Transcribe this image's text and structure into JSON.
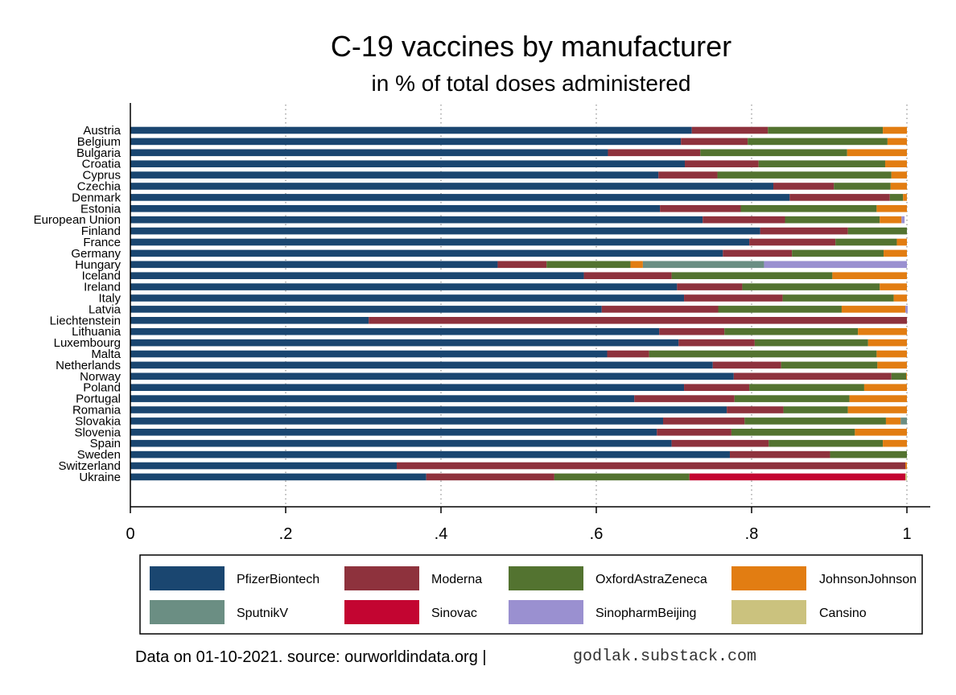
{
  "chart_data": {
    "type": "bar",
    "orientation": "horizontal",
    "stacked": true,
    "title": "C-19 vaccines by manufacturer",
    "subtitle": "in % of total doses administered",
    "xlim": [
      0,
      1
    ],
    "xticks": [
      {
        "value": 0,
        "label": "0"
      },
      {
        "value": 0.2,
        "label": ".2"
      },
      {
        "value": 0.4,
        "label": ".4"
      },
      {
        "value": 0.6,
        "label": ".6"
      },
      {
        "value": 0.8,
        "label": ".8"
      },
      {
        "value": 1,
        "label": "1"
      }
    ],
    "grid": "vertical dotted",
    "legend_position": "bottom",
    "categories": [
      "Austria",
      "Belgium",
      "Bulgaria",
      "Croatia",
      "Cyprus",
      "Czechia",
      "Denmark",
      "Estonia",
      "European Union",
      "Finland",
      "France",
      "Germany",
      "Hungary",
      "Iceland",
      "Ireland",
      "Italy",
      "Latvia",
      "Liechtenstein",
      "Lithuania",
      "Luxembourg",
      "Malta",
      "Netherlands",
      "Norway",
      "Poland",
      "Portugal",
      "Romania",
      "Slovakia",
      "Slovenia",
      "Spain",
      "Sweden",
      "Switzerland",
      "Ukraine"
    ],
    "series": [
      {
        "name": "PfizerBiontech",
        "color": "#1a4670",
        "values": [
          0.723,
          0.709,
          0.615,
          0.714,
          0.68,
          0.828,
          0.849,
          0.682,
          0.737,
          0.811,
          0.797,
          0.763,
          0.473,
          0.584,
          0.704,
          0.713,
          0.607,
          0.307,
          0.681,
          0.706,
          0.614,
          0.75,
          0.777,
          0.713,
          0.649,
          0.768,
          0.686,
          0.678,
          0.697,
          0.772,
          0.343,
          0.381
        ]
      },
      {
        "name": "Moderna",
        "color": "#8e323d",
        "values": [
          0.098,
          0.086,
          0.119,
          0.095,
          0.076,
          0.078,
          0.129,
          0.104,
          0.106,
          0.113,
          0.111,
          0.089,
          0.063,
          0.113,
          0.084,
          0.127,
          0.15,
          0.693,
          0.084,
          0.098,
          0.054,
          0.088,
          0.203,
          0.084,
          0.129,
          0.073,
          0.105,
          0.096,
          0.125,
          0.129,
          0.655,
          0.165
        ]
      },
      {
        "name": "OxfordAstraZeneca",
        "color": "#537330",
        "values": [
          0.148,
          0.18,
          0.189,
          0.163,
          0.224,
          0.073,
          0.017,
          0.175,
          0.122,
          0.076,
          0.079,
          0.118,
          0.108,
          0.207,
          0.177,
          0.143,
          0.159,
          0.0,
          0.172,
          0.146,
          0.293,
          0.124,
          0.019,
          0.148,
          0.148,
          0.083,
          0.182,
          0.159,
          0.147,
          0.099,
          0.0,
          0.174
        ]
      },
      {
        "name": "JohnsonJohnson",
        "color": "#e27d12",
        "values": [
          0.031,
          0.025,
          0.077,
          0.028,
          0.02,
          0.021,
          0.005,
          0.039,
          0.028,
          0.0,
          0.013,
          0.03,
          0.016,
          0.096,
          0.035,
          0.017,
          0.082,
          0.0,
          0.063,
          0.05,
          0.039,
          0.038,
          0.001,
          0.055,
          0.074,
          0.076,
          0.019,
          0.067,
          0.031,
          0.0,
          0.002,
          0.0
        ]
      },
      {
        "name": "SputnikV",
        "color": "#6b8e83",
        "values": [
          0,
          0,
          0,
          0,
          0,
          0,
          0,
          0,
          0,
          0,
          0,
          0,
          0.156,
          0,
          0,
          0,
          0,
          0,
          0,
          0,
          0,
          0,
          0,
          0,
          0,
          0,
          0.008,
          0,
          0,
          0,
          0,
          0
        ]
      },
      {
        "name": "Sinovac",
        "color": "#c30531",
        "values": [
          0,
          0,
          0,
          0,
          0,
          0,
          0,
          0,
          0,
          0,
          0,
          0,
          0,
          0,
          0,
          0,
          0,
          0,
          0,
          0,
          0,
          0,
          0,
          0,
          0,
          0,
          0,
          0,
          0,
          0,
          0,
          0.278
        ]
      },
      {
        "name": "SinopharmBeijing",
        "color": "#9a90d0",
        "values": [
          0,
          0,
          0,
          0,
          0,
          0,
          0,
          0,
          0.004,
          0,
          0,
          0,
          0.184,
          0,
          0,
          0,
          0.003,
          0,
          0,
          0,
          0,
          0,
          0,
          0,
          0,
          0,
          0,
          0,
          0,
          0,
          0,
          0
        ]
      },
      {
        "name": "Cansino",
        "color": "#cbc27e",
        "values": [
          0,
          0,
          0,
          0,
          0,
          0,
          0,
          0,
          0,
          0,
          0,
          0,
          0,
          0,
          0,
          0,
          0,
          0,
          0,
          0,
          0,
          0,
          0,
          0,
          0,
          0,
          0,
          0,
          0,
          0,
          0,
          0.002
        ]
      }
    ],
    "footnote": "Data on 01-10-2021. source: ourworldindata.org |",
    "footnote_site": "godlak.substack.com"
  }
}
